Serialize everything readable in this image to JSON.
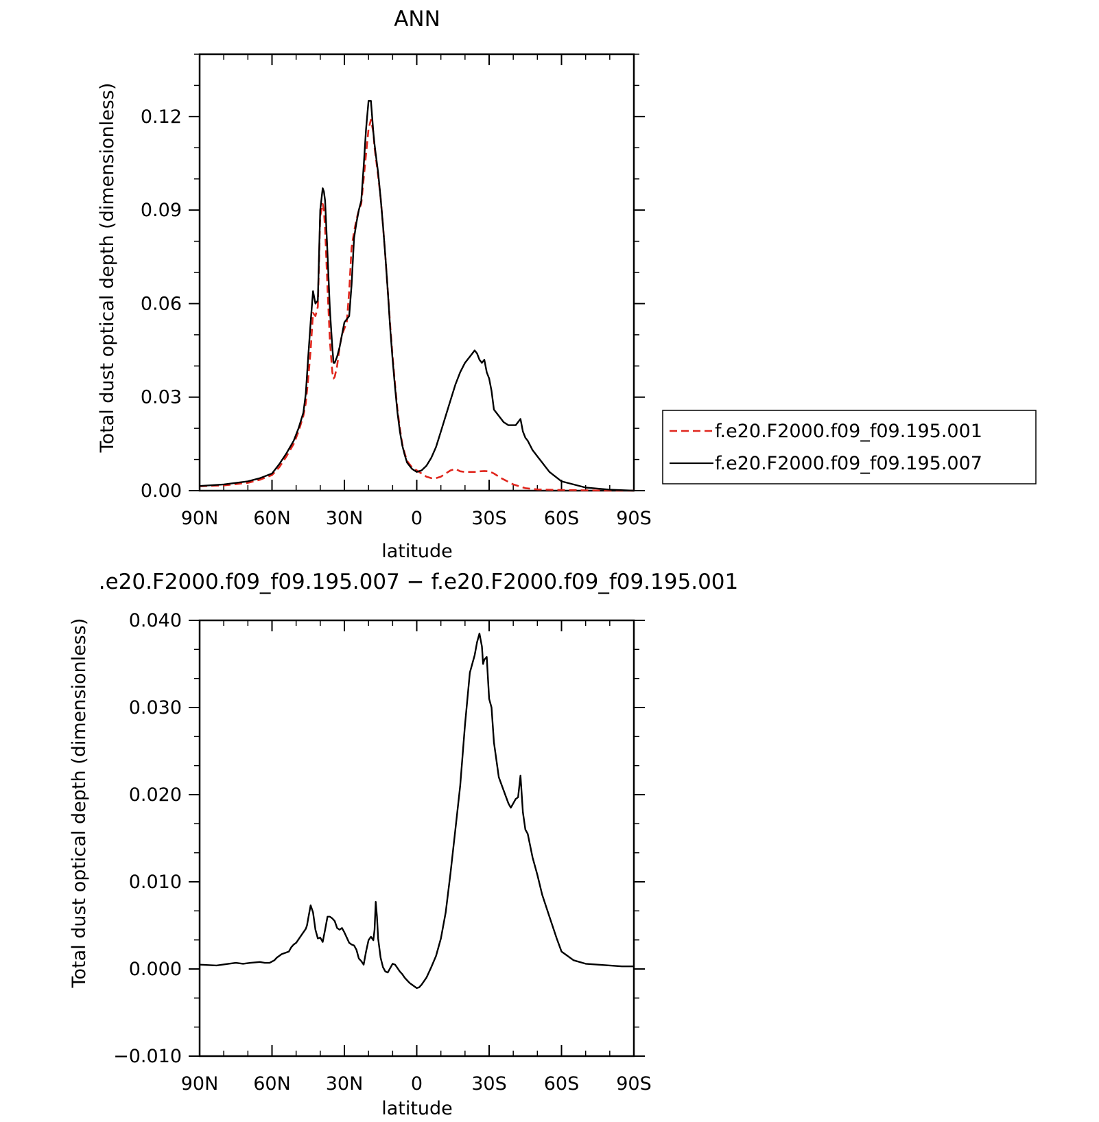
{
  "chart_data": [
    {
      "type": "line",
      "title": "ANN",
      "xlabel": "latitude",
      "ylabel": "Total dust optical depth (dimensionless)",
      "xlim": [
        90,
        -90
      ],
      "ylim": [
        0,
        0.14
      ],
      "x_ticks": [
        90,
        60,
        30,
        0,
        -30,
        -60,
        -90
      ],
      "x_tick_labels": [
        "90N",
        "60N",
        "30N",
        "0",
        "30S",
        "60S",
        "90S"
      ],
      "y_ticks": [
        0.0,
        0.03,
        0.06,
        0.09,
        0.12
      ],
      "y_tick_labels": [
        "0.00",
        "0.03",
        "0.06",
        "0.09",
        "0.12"
      ],
      "legend_position": "right",
      "series": [
        {
          "name": "f.e20.F2000.f09_f09.195.001",
          "color": "#e0261d",
          "dash": "dashed",
          "x": [
            90,
            80,
            70,
            65,
            60,
            57,
            54,
            51,
            49,
            47,
            46,
            45,
            44,
            43,
            42,
            41,
            40,
            39,
            38.5,
            38,
            37,
            36,
            35,
            34.5,
            34,
            33,
            32,
            31,
            30,
            29,
            28,
            27,
            26,
            25,
            24,
            23,
            22,
            21,
            20,
            19,
            18,
            17.5,
            17,
            16,
            15,
            14,
            13,
            12,
            11,
            10,
            9,
            8,
            7,
            6,
            5,
            4,
            3,
            2,
            1,
            0,
            -2,
            -4,
            -6,
            -8,
            -10,
            -12,
            -14,
            -16,
            -18,
            -20,
            -22,
            -24,
            -26,
            -28,
            -30,
            -32,
            -35,
            -40,
            -45,
            -50,
            -60,
            -70,
            -80,
            -90
          ],
          "y": [
            0.0014,
            0.0017,
            0.0025,
            0.0035,
            0.005,
            0.0075,
            0.011,
            0.015,
            0.019,
            0.024,
            0.028,
            0.036,
            0.045,
            0.057,
            0.056,
            0.059,
            0.088,
            0.092,
            0.09,
            0.084,
            0.065,
            0.048,
            0.038,
            0.036,
            0.0365,
            0.04,
            0.046,
            0.05,
            0.052,
            0.054,
            0.064,
            0.078,
            0.083,
            0.087,
            0.09,
            0.092,
            0.1,
            0.108,
            0.116,
            0.119,
            0.115,
            0.11,
            0.107,
            0.101,
            0.094,
            0.085,
            0.075,
            0.064,
            0.053,
            0.043,
            0.034,
            0.026,
            0.02,
            0.015,
            0.012,
            0.0095,
            0.0085,
            0.0075,
            0.007,
            0.0065,
            0.0055,
            0.0045,
            0.004,
            0.004,
            0.0045,
            0.0055,
            0.0065,
            0.007,
            0.0062,
            0.006,
            0.006,
            0.006,
            0.0062,
            0.0063,
            0.0062,
            0.0055,
            0.004,
            0.002,
            0.0008,
            0.0004,
            0.0002,
            0.0001,
            0.0,
            0.0
          ]
        },
        {
          "name": "f.e20.F2000.f09_f09.195.007",
          "color": "#000000",
          "dash": "solid",
          "x": [
            90,
            80,
            70,
            65,
            60,
            57,
            54,
            51,
            49,
            47,
            46,
            45,
            44,
            43,
            42,
            41,
            40,
            39,
            38.5,
            38,
            37,
            36,
            35,
            34.5,
            34,
            33,
            32,
            31,
            30,
            29,
            28,
            27,
            26,
            25,
            24,
            23,
            22,
            21,
            20,
            19,
            18,
            17.5,
            17,
            16,
            15,
            14,
            13,
            12,
            11,
            10,
            9,
            8,
            7,
            6,
            5,
            4,
            3,
            2,
            1,
            0,
            -2,
            -4,
            -6,
            -8,
            -10,
            -12,
            -14,
            -16,
            -18,
            -20,
            -22,
            -24,
            -25,
            -26,
            -27,
            -28,
            -29,
            -30,
            -31,
            -32,
            -33,
            -34,
            -36,
            -38,
            -40,
            -41,
            -42,
            -43,
            -44,
            -45,
            -46,
            -48,
            -50,
            -55,
            -60,
            -70,
            -80,
            -90
          ],
          "y": [
            0.0015,
            0.002,
            0.003,
            0.004,
            0.0055,
            0.0085,
            0.012,
            0.016,
            0.02,
            0.025,
            0.031,
            0.043,
            0.054,
            0.064,
            0.06,
            0.061,
            0.09,
            0.097,
            0.096,
            0.093,
            0.076,
            0.058,
            0.046,
            0.041,
            0.041,
            0.043,
            0.046,
            0.05,
            0.054,
            0.055,
            0.056,
            0.066,
            0.081,
            0.086,
            0.09,
            0.093,
            0.104,
            0.116,
            0.125,
            0.125,
            0.115,
            0.111,
            0.108,
            0.102,
            0.094,
            0.085,
            0.075,
            0.064,
            0.052,
            0.042,
            0.033,
            0.025,
            0.019,
            0.0145,
            0.0115,
            0.009,
            0.008,
            0.007,
            0.0065,
            0.006,
            0.0065,
            0.008,
            0.0105,
            0.014,
            0.019,
            0.024,
            0.029,
            0.034,
            0.038,
            0.041,
            0.043,
            0.045,
            0.044,
            0.042,
            0.041,
            0.042,
            0.038,
            0.036,
            0.032,
            0.026,
            0.025,
            0.024,
            0.022,
            0.021,
            0.021,
            0.021,
            0.022,
            0.023,
            0.019,
            0.017,
            0.016,
            0.013,
            0.011,
            0.006,
            0.003,
            0.001,
            0.0003,
            0.0
          ]
        }
      ]
    },
    {
      "type": "line",
      "title": ".e20.F2000.f09_f09.195.007 − f.e20.F2000.f09_f09.195.001",
      "xlabel": "latitude",
      "ylabel": "Total dust optical depth (dimensionless)",
      "xlim": [
        90,
        -90
      ],
      "ylim": [
        -0.01,
        0.04
      ],
      "x_ticks": [
        90,
        60,
        30,
        0,
        -30,
        -60,
        -90
      ],
      "x_tick_labels": [
        "90N",
        "60N",
        "30N",
        "0",
        "30S",
        "60S",
        "90S"
      ],
      "y_ticks": [
        -0.01,
        0.0,
        0.01,
        0.02,
        0.03,
        0.04
      ],
      "y_tick_labels": [
        "−0.010",
        "0.000",
        "0.010",
        "0.020",
        "0.030",
        "0.040"
      ],
      "series": [
        {
          "color": "#000000",
          "dash": "solid",
          "x": [
            90,
            83,
            78,
            75,
            72,
            69,
            65,
            63,
            61,
            59,
            58,
            56,
            55,
            53,
            52,
            51,
            50,
            48,
            46,
            45.5,
            45,
            44,
            43,
            42,
            41,
            40,
            39,
            38,
            37,
            36,
            35,
            34,
            33,
            32,
            31,
            30,
            28,
            27,
            26,
            25,
            24,
            23,
            22,
            21,
            20,
            19,
            18,
            17.5,
            17,
            16.5,
            16,
            15,
            14,
            13,
            12,
            11,
            10,
            9,
            8,
            7,
            6,
            5,
            4,
            3,
            2,
            1,
            0,
            -1,
            -2,
            -4,
            -6,
            -8,
            -10,
            -12,
            -14,
            -16,
            -18,
            -20,
            -22,
            -24,
            -25,
            -26,
            -27,
            -27.5,
            -28,
            -29,
            -30,
            -31,
            -32,
            -34,
            -36,
            -38,
            -39,
            -40,
            -41,
            -42,
            -43,
            -44,
            -45,
            -46,
            -48,
            -50,
            -52,
            -55,
            -58,
            -60,
            -65,
            -70,
            -75,
            -80,
            -85,
            -90
          ],
          "y": [
            0.0005,
            0.0004,
            0.0006,
            0.0007,
            0.0006,
            0.0007,
            0.0008,
            0.0007,
            0.0007,
            0.001,
            0.0013,
            0.0017,
            0.0018,
            0.002,
            0.0025,
            0.0028,
            0.003,
            0.0038,
            0.0046,
            0.005,
            0.0058,
            0.0073,
            0.0065,
            0.0045,
            0.0035,
            0.0036,
            0.0031,
            0.0045,
            0.006,
            0.006,
            0.0058,
            0.0055,
            0.0047,
            0.0045,
            0.0047,
            0.0042,
            0.003,
            0.0028,
            0.0027,
            0.0022,
            0.0012,
            0.0009,
            0.0005,
            0.002,
            0.0033,
            0.0037,
            0.0033,
            0.0045,
            0.0077,
            0.006,
            0.0035,
            0.0013,
            0.0002,
            -0.0003,
            -0.0004,
            0.0001,
            0.0006,
            0.0005,
            0.0001,
            -0.0003,
            -0.0006,
            -0.001,
            -0.0013,
            -0.0016,
            -0.0018,
            -0.002,
            -0.0022,
            -0.0021,
            -0.0018,
            -0.001,
            0.0002,
            0.0015,
            0.0035,
            0.0065,
            0.011,
            0.016,
            0.021,
            0.028,
            0.034,
            0.036,
            0.0375,
            0.0385,
            0.037,
            0.035,
            0.0355,
            0.0358,
            0.031,
            0.03,
            0.026,
            0.022,
            0.0205,
            0.019,
            0.0185,
            0.019,
            0.0195,
            0.0197,
            0.0222,
            0.018,
            0.016,
            0.0155,
            0.0128,
            0.0108,
            0.0085,
            0.006,
            0.0035,
            0.002,
            0.001,
            0.0006,
            0.0005,
            0.0004,
            0.0003,
            0.0003
          ]
        }
      ]
    }
  ],
  "legend": {
    "items": [
      {
        "label": "f.e20.F2000.f09_f09.195.001"
      },
      {
        "label": "f.e20.F2000.f09_f09.195.007"
      }
    ]
  }
}
